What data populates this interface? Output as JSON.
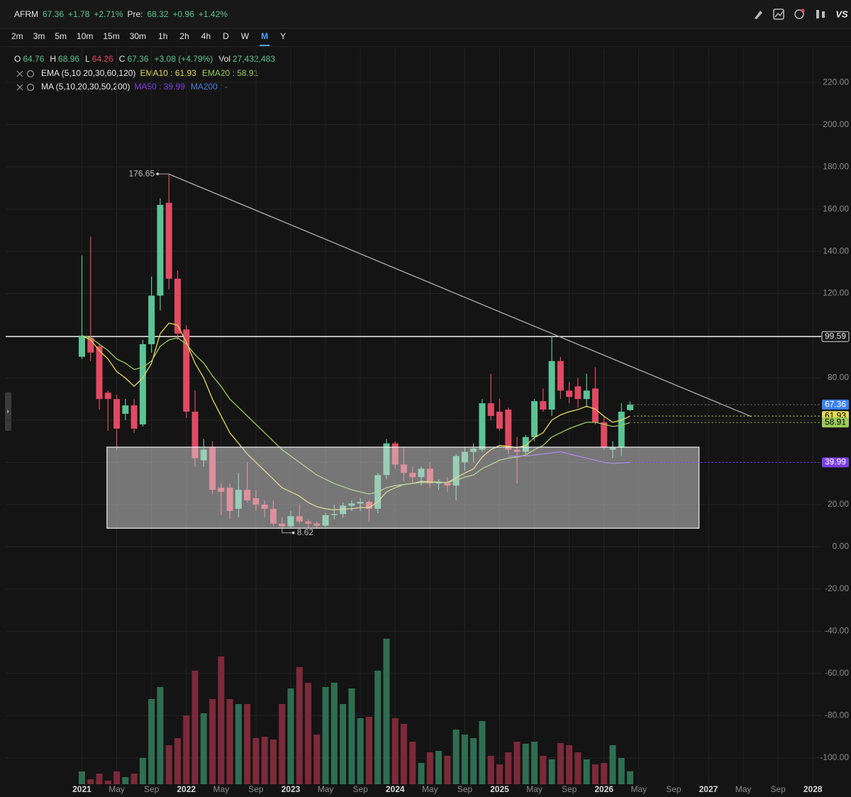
{
  "header": {
    "symbol": "AFRM",
    "change": "+1.78",
    "change_pct": "+2.71%",
    "pre_label": "Pre:",
    "pre": "68.32",
    "pre_change": "+0.96",
    "pre_change_pct": "+1.42%",
    "tools_label": "VS"
  },
  "timeframes": [
    "2m",
    "3m",
    "5m",
    "10m",
    "15m",
    "30m",
    "1h",
    "2h",
    "4h",
    "D",
    "W",
    "M",
    "Y"
  ],
  "active_timeframe": "M",
  "ohlc_line": {
    "open_label": "O",
    "high_label": "H",
    "low_label": "L",
    "close_label": "C",
    "change": "+3.08 (+4.79%)",
    "vol_label": "Vol",
    "vol": "27,432,483"
  },
  "indicators": [
    {
      "title": "EMA (5,10,20,30,60,120)"
    },
    {
      "title": "MA (5,10,20,30,50,200)",
      "missing": [
        {
          "name": "MA200",
          "value": "-",
          "color": "#4a7fd4"
        }
      ]
    }
  ],
  "separator": " : ",
  "chart_data": {
    "type": "candlestick",
    "x": [
      "2021-01",
      "2021-02",
      "2021-03",
      "2021-04",
      "2021-05",
      "2021-06",
      "2021-07",
      "2021-08",
      "2021-09",
      "2021-10",
      "2021-11",
      "2021-12",
      "2022-01",
      "2022-02",
      "2022-03",
      "2022-04",
      "2022-05",
      "2022-06",
      "2022-07",
      "2022-08",
      "2022-09",
      "2022-10",
      "2022-11",
      "2022-12",
      "2023-01",
      "2023-02",
      "2023-03",
      "2023-04",
      "2023-05",
      "2023-06",
      "2023-07",
      "2023-08",
      "2023-09",
      "2023-10",
      "2023-11",
      "2023-12",
      "2024-01",
      "2024-02",
      "2024-03",
      "2024-04",
      "2024-05",
      "2024-06",
      "2024-07",
      "2024-08",
      "2024-09",
      "2024-10",
      "2024-11",
      "2024-12",
      "2025-01",
      "2025-02",
      "2025-03",
      "2025-04",
      "2025-05",
      "2025-06",
      "2025-07",
      "2025-08",
      "2025-09",
      "2025-10",
      "2025-11",
      "2025-12",
      "2026-01",
      "2026-02",
      "2026-03",
      "2026-04"
    ],
    "open": [
      90,
      99,
      95,
      73,
      70,
      63,
      67,
      58,
      96,
      119,
      163,
      127,
      103,
      64,
      41,
      47,
      28,
      28,
      18,
      27,
      23,
      20,
      18,
      11,
      9.7,
      14.5,
      12,
      11,
      10,
      15,
      15.5,
      19.5,
      20.5,
      21.3,
      18,
      34,
      49,
      39,
      35,
      33,
      37,
      30,
      30.5,
      29,
      40,
      45,
      46,
      68,
      64,
      65,
      46,
      45,
      52,
      69,
      65,
      88,
      74,
      76,
      70,
      75,
      59,
      46,
      47,
      64.76
    ],
    "high": [
      138,
      147,
      96,
      74,
      72,
      70,
      70,
      98,
      128,
      165,
      176.65,
      131,
      105,
      74,
      51,
      50,
      30,
      30,
      35,
      40,
      27,
      22,
      22,
      14,
      17,
      20,
      13,
      12,
      16,
      20,
      21,
      22,
      23,
      22,
      35,
      51,
      50,
      47,
      38,
      38,
      40,
      32,
      33,
      44,
      47,
      49,
      70,
      82,
      70,
      66,
      52,
      53,
      70,
      75,
      99.59,
      90,
      78,
      80,
      82,
      85,
      62,
      50,
      68,
      68.96
    ],
    "low": [
      89,
      88,
      65,
      55,
      46,
      60,
      54,
      57,
      92,
      112,
      122,
      98,
      61,
      38,
      38,
      25,
      15,
      13,
      14,
      21,
      17,
      14,
      10,
      8.62,
      9,
      11,
      9,
      9,
      9.5,
      13,
      14,
      17,
      17,
      12,
      16,
      32,
      37,
      31,
      30,
      29,
      28,
      27,
      26,
      22,
      36,
      40,
      45,
      60,
      55,
      44,
      30,
      44,
      50,
      64,
      62,
      70,
      68,
      66,
      66,
      58,
      46,
      42,
      43,
      64.26
    ],
    "close": [
      100,
      92,
      70,
      70,
      56,
      67,
      56,
      96,
      119,
      162,
      127,
      101,
      64,
      42,
      46,
      27,
      26,
      17,
      27,
      22,
      20,
      18,
      11,
      9.7,
      14.5,
      12,
      11,
      10,
      15,
      15.5,
      19.5,
      20.5,
      21.3,
      18,
      34,
      49,
      39,
      35,
      33,
      37,
      30,
      30.5,
      29,
      43,
      45,
      46.5,
      68,
      62,
      56,
      46,
      45,
      52,
      69,
      65,
      88,
      74,
      71,
      70,
      74,
      59,
      47,
      47,
      64,
      67.36
    ],
    "volume": [
      27,
      10.5,
      22.5,
      7.5,
      27,
      15,
      22.5,
      55.5,
      180,
      205.5,
      82.5,
      97.5,
      145.5,
      240,
      150,
      180,
      270,
      180,
      169.5,
      169.5,
      97.5,
      100.5,
      94.5,
      169.5,
      202.5,
      247.5,
      214.5,
      105,
      205.5,
      214.5,
      169.5,
      202.5,
      139.5,
      142.5,
      240,
      307.5,
      139.5,
      127.5,
      90,
      45,
      67.5,
      70.5,
      60,
      115.5,
      105,
      97.5,
      133.5,
      60,
      42,
      67.5,
      90,
      85.5,
      90,
      60,
      52.5,
      87,
      82.5,
      67.5,
      52.5,
      42,
      45,
      82.5,
      55.5,
      27.43
    ],
    "up_color": "#5cc396",
    "down_color": "#e04a62",
    "up_volume_color": "#2f6e52",
    "down_volume_color": "#7c2a3a",
    "series": [
      {
        "name": "EMA10",
        "color": "#e6d95a",
        "values": [
          100,
          98,
          93,
          89,
          83,
          80,
          76,
          80,
          87,
          101,
          106,
          105,
          97,
          87,
          80,
          70,
          62,
          54,
          49,
          44,
          40,
          36,
          32,
          28,
          26,
          24,
          21,
          19,
          18,
          17.5,
          17.8,
          18,
          18.6,
          18.5,
          21.3,
          26,
          28,
          29.5,
          30,
          31,
          30.8,
          30.7,
          30.4,
          32.7,
          34.9,
          36.9,
          42.5,
          46,
          48,
          47.6,
          47,
          48,
          51.8,
          54,
          60,
          62.5,
          64,
          65,
          66.6,
          65.2,
          61.8,
          59,
          60,
          61.93
        ]
      },
      {
        "name": "EMA20",
        "color": "#9acb5a",
        "values": [
          100,
          99,
          96,
          93,
          89,
          87,
          84,
          85,
          88,
          95,
          98,
          99,
          96,
          91,
          87,
          81,
          76,
          70,
          66,
          62,
          58,
          54,
          50,
          46,
          43,
          40,
          37,
          34,
          32,
          30,
          28.5,
          27,
          26,
          25,
          26,
          28,
          29,
          29.5,
          30,
          30.5,
          30.5,
          30.5,
          30.5,
          31.5,
          33,
          34,
          37,
          39,
          41,
          42,
          42.5,
          43.5,
          46,
          48,
          52,
          54,
          56,
          57.5,
          59,
          59,
          58,
          57,
          57.5,
          58.91
        ]
      },
      {
        "name": "MA50",
        "color": "#7d3fe6",
        "values": [
          null,
          null,
          null,
          null,
          null,
          null,
          null,
          null,
          null,
          null,
          null,
          null,
          null,
          null,
          null,
          null,
          null,
          null,
          null,
          null,
          null,
          null,
          null,
          null,
          null,
          null,
          null,
          null,
          null,
          null,
          null,
          null,
          null,
          null,
          null,
          null,
          null,
          null,
          null,
          null,
          null,
          null,
          null,
          null,
          null,
          null,
          null,
          null,
          null,
          43,
          43,
          43,
          43.5,
          44,
          44.5,
          45,
          44,
          43,
          42,
          41,
          40,
          39.5,
          39.7,
          39.99
        ]
      }
    ],
    "last_price_color": "#3b82f6",
    "hlines": [
      {
        "value": 99.59,
        "color": "#e8e8e8"
      }
    ],
    "trendline": {
      "x": [
        2021.83,
        2027.41
      ],
      "y": [
        176.65,
        61.7
      ],
      "color": "#b0b0b0"
    },
    "zone": {
      "x": [
        2021.24,
        2026.91
      ],
      "y": [
        8.8,
        47.2
      ],
      "color": "#d8d8d8"
    },
    "xlim": [
      2020.27,
      2028.08
    ],
    "xticks": [
      2021,
      {
        "value": 2021.3333,
        "label": "May"
      },
      {
        "value": 2021.6667,
        "label": "Sep"
      },
      2022,
      {
        "value": 2022.3333,
        "label": "May"
      },
      {
        "value": 2022.6667,
        "label": "Sep"
      },
      2023,
      {
        "value": 2023.3333,
        "label": "May"
      },
      {
        "value": 2023.6667,
        "label": "Sep"
      },
      2024,
      {
        "value": 2024.3333,
        "label": "May"
      },
      {
        "value": 2024.6667,
        "label": "Sep"
      },
      2025,
      {
        "value": 2025.3333,
        "label": "May"
      },
      {
        "value": 2025.6667,
        "label": "Sep"
      },
      2026,
      {
        "value": 2026.3333,
        "label": "May"
      },
      {
        "value": 2026.6667,
        "label": "Sep"
      },
      2027,
      {
        "value": 2027.3333,
        "label": "May"
      },
      {
        "value": 2027.6667,
        "label": "Sep"
      },
      2028
    ],
    "ylim": [
      -112.5,
      236.2
    ],
    "yticks": [
      {
        "value": -100,
        "label": "-100.00"
      },
      {
        "value": -80,
        "label": "-80.00"
      },
      {
        "value": -60,
        "label": "-60.00"
      },
      {
        "value": -40,
        "label": "-40.00"
      },
      {
        "value": -20,
        "label": "-20.00"
      },
      {
        "value": 0,
        "label": "0.00"
      },
      {
        "value": 20,
        "label": "20.00"
      },
      {
        "value": 40,
        "label": "40.00"
      },
      {
        "value": 60,
        "label": "60.00"
      },
      {
        "value": 80,
        "label": "80.00"
      },
      {
        "value": 100,
        "label": "100.00"
      },
      {
        "value": 120,
        "label": "120.00"
      },
      {
        "value": 140,
        "label": "140.00"
      },
      {
        "value": 160,
        "label": "160.00"
      },
      {
        "value": 180,
        "label": "180.00"
      },
      {
        "value": 200,
        "label": "200.00"
      },
      {
        "value": 220,
        "label": "220.00"
      }
    ],
    "grid": true
  }
}
